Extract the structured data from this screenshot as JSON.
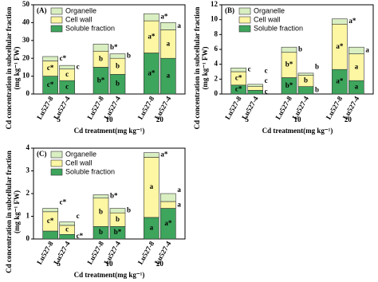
{
  "chart_data": [
    {
      "type": "bar",
      "stacked": true,
      "panel": "(A)",
      "y_label": "Cd concentration in subcellular fraction",
      "y_unit": "(mg kg⁻¹ FW)",
      "x_label": "Cd treatment(mg kg⁻¹)",
      "categories": [
        "Lu527-8",
        "Lu527-4",
        "Lu527-8",
        "Lu527-4",
        "Lu527-8",
        "Lu527-4"
      ],
      "groups": [
        "5",
        "10",
        "20"
      ],
      "ylim": [
        0,
        50
      ],
      "yticks": [
        0,
        10,
        20,
        30,
        40,
        50
      ],
      "series": [
        {
          "name": "Soluble fraction",
          "color": "#3ea55c",
          "values": [
            10,
            7.5,
            15,
            11,
            23,
            20
          ],
          "letters": [
            "c*",
            "c",
            "b*",
            "b",
            "a*",
            "a"
          ]
        },
        {
          "name": "Cell wall",
          "color": "#fdf6a3",
          "values": [
            8.5,
            6.5,
            9,
            9,
            18,
            16
          ],
          "letters": [
            "c*",
            "c",
            "b",
            "b",
            "a*",
            "a"
          ]
        },
        {
          "name": "Organelle",
          "color": "#d9efc2",
          "values": [
            2.5,
            2,
            4,
            2.5,
            4,
            4
          ],
          "letters": [
            "c*",
            "c",
            "b*",
            "b",
            "a*",
            "a"
          ]
        }
      ]
    },
    {
      "type": "bar",
      "stacked": true,
      "panel": "(B)",
      "y_label": "Cd concentration in subcellular fraction",
      "y_unit": "(mg kg⁻¹ FW)",
      "x_label": "Cd treatment(mg kg⁻¹)",
      "categories": [
        "Lu527-8",
        "Lu527-4",
        "Lu527-8",
        "Lu527-4",
        "Lu527-8",
        "Lu527-4"
      ],
      "groups": [
        "5",
        "10",
        "20"
      ],
      "ylim": [
        0,
        12
      ],
      "yticks": [
        0,
        2,
        4,
        6,
        8,
        10,
        12
      ],
      "series": [
        {
          "name": "Soluble fraction",
          "color": "#3ea55c",
          "values": [
            1.2,
            0.5,
            2.2,
            1.0,
            3.3,
            1.8
          ],
          "letters": [
            "c*",
            "c",
            "b*",
            "b",
            "a*",
            "a"
          ]
        },
        {
          "name": "Cell wall",
          "color": "#fdf6a3",
          "values": [
            1.8,
            0.5,
            3.4,
            1.5,
            6.1,
            3.6
          ],
          "letters": [
            "c*",
            "c",
            "b*",
            "b",
            "a*",
            "a"
          ]
        },
        {
          "name": "Organelle",
          "color": "#d9efc2",
          "values": [
            0.5,
            0.3,
            0.7,
            0.3,
            0.7,
            0.9
          ],
          "letters": [
            "c",
            "c",
            "b",
            "b",
            "a*",
            "a"
          ]
        }
      ]
    },
    {
      "type": "bar",
      "stacked": true,
      "panel": "(C)",
      "y_label": "Cd concentration in subcellular fraction",
      "y_unit": "(mg kg⁻¹ FW)",
      "x_label": "Cd treatment(mg kg⁻¹)",
      "categories": [
        "Lu527-8",
        "Lu527-4",
        "Lu527-8",
        "Lu527-4",
        "Lu527-8",
        "Lu527-4"
      ],
      "groups": [
        "5",
        "10",
        "20"
      ],
      "ylim": [
        0,
        4
      ],
      "yticks": [
        0,
        1,
        2,
        3,
        4
      ],
      "series": [
        {
          "name": "Soluble fraction",
          "color": "#3ea55c",
          "values": [
            0.35,
            0.2,
            0.55,
            0.55,
            0.95,
            1.35
          ],
          "letters": [
            "c*",
            "c*",
            "b",
            "b*",
            "a",
            "a*"
          ]
        },
        {
          "name": "Cell wall",
          "color": "#fdf6a3",
          "values": [
            0.85,
            0.4,
            1.25,
            0.6,
            2.65,
            0.3
          ],
          "letters": [
            "c*",
            "c",
            "b",
            "b",
            "a",
            "a"
          ]
        },
        {
          "name": "Organelle",
          "color": "#d9efc2",
          "values": [
            0.15,
            0.15,
            0.15,
            0.2,
            0.2,
            0.35
          ],
          "letters": [
            "c*",
            "c",
            "b*",
            "b",
            "a*",
            "a"
          ]
        }
      ]
    }
  ]
}
